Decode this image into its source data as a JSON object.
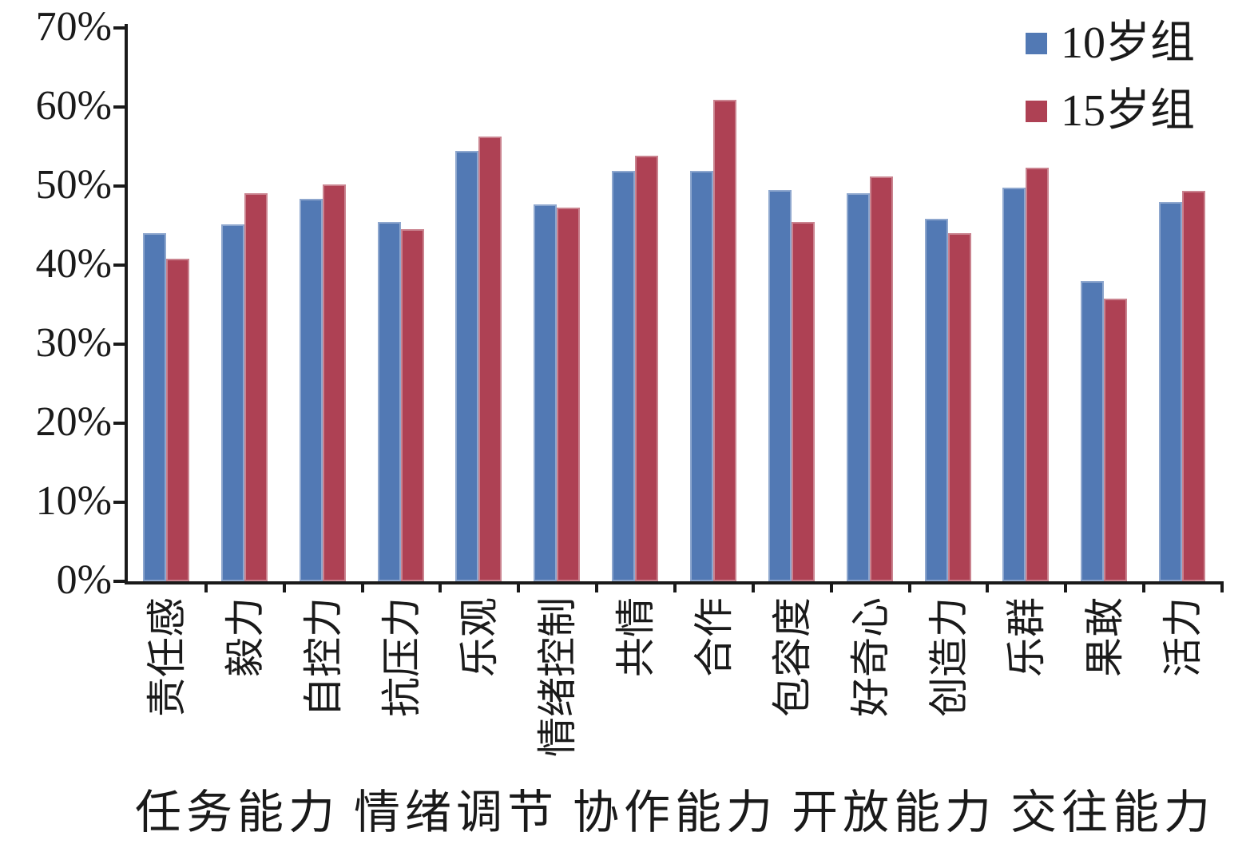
{
  "chart_data": {
    "type": "bar",
    "title": "",
    "xlabel": "",
    "ylabel": "",
    "ymax": 70,
    "ytick_step": 10,
    "ytick_labels": [
      "0%",
      "10%",
      "20%",
      "30%",
      "40%",
      "50%",
      "60%",
      "70%"
    ],
    "grid": false,
    "legend_position": "top-right",
    "axis_color": "#1a1a1a",
    "categories": [
      "责任感",
      "毅力",
      "自控力",
      "抗压力",
      "乐观",
      "情绪控制",
      "共情",
      "合作",
      "包容度",
      "好奇心",
      "创造力",
      "乐群",
      "果敢",
      "活力"
    ],
    "series": [
      {
        "name": "10岁组",
        "color": "#5279b4",
        "values": [
          44.0,
          45.2,
          48.4,
          45.5,
          54.4,
          47.7,
          51.9,
          51.9,
          49.5,
          49.1,
          45.9,
          49.8,
          38.0,
          48.0
        ]
      },
      {
        "name": "15岁组",
        "color": "#ae4154",
        "values": [
          40.8,
          49.1,
          50.2,
          44.5,
          56.3,
          47.3,
          53.8,
          60.9,
          45.5,
          51.2,
          44.0,
          52.3,
          35.8,
          49.4
        ]
      }
    ],
    "category_groups": [
      {
        "label": "任务能力",
        "traits": [
          "责任感",
          "毅力",
          "自控力"
        ]
      },
      {
        "label": "情绪调节",
        "traits": [
          "抗压力",
          "乐观",
          "情绪控制"
        ]
      },
      {
        "label": "协作能力",
        "traits": [
          "共情",
          "合作"
        ]
      },
      {
        "label": "开放能力",
        "traits": [
          "包容度",
          "好奇心",
          "创造力"
        ]
      },
      {
        "label": "交往能力",
        "traits": [
          "乐群",
          "果敢",
          "活力"
        ]
      }
    ]
  }
}
